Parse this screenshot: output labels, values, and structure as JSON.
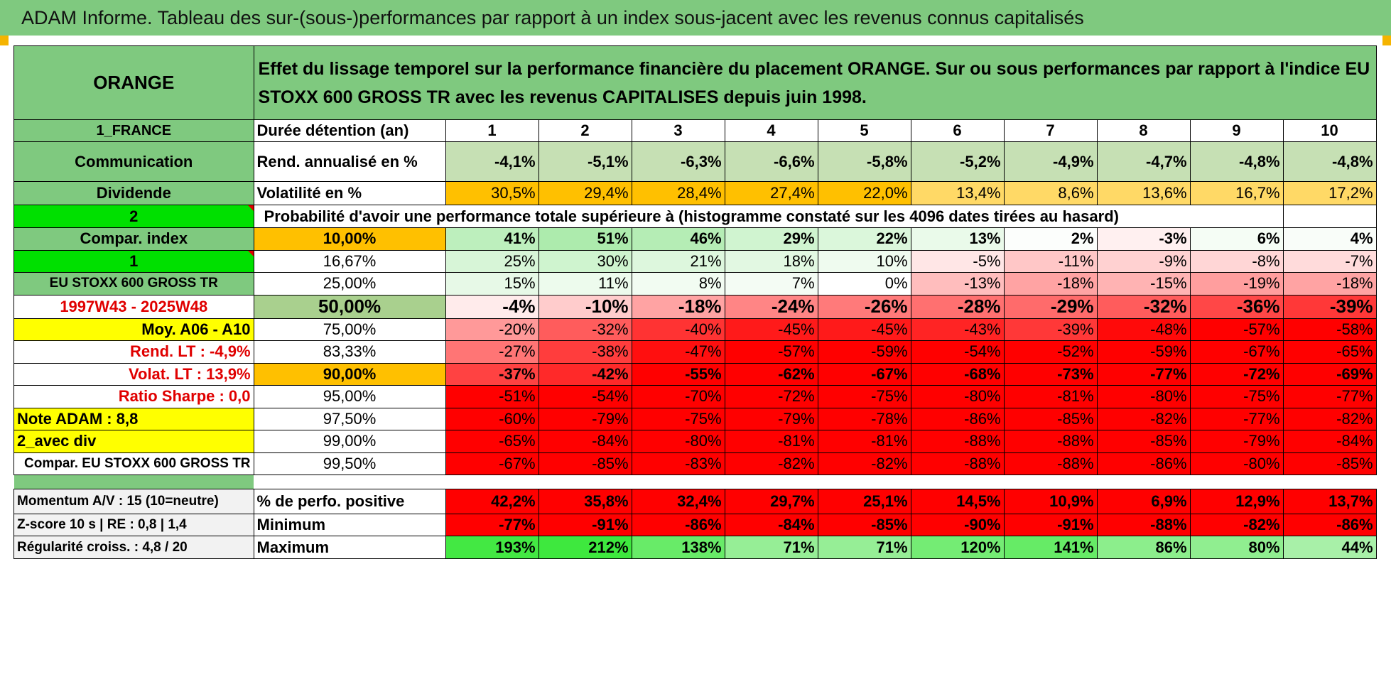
{
  "title": "ADAM Informe. Tableau des sur-(sous-)performances par rapport à un index sous-jacent avec les revenus connus capitalisés",
  "header": {
    "stock": "ORANGE",
    "description": "Effet du lissage temporel sur la performance financière du placement ORANGE. Sur ou sous performances par rapport à l'indice EU STOXX 600 GROSS TR avec les revenus CAPITALISES depuis juin 1998."
  },
  "side": {
    "country": "1_FRANCE",
    "sector": "Communication",
    "type": "Dividende",
    "prob_id": "2",
    "compar_label": "Compar. index",
    "index_id": "1",
    "index_name": "EU STOXX 600 GROSS TR",
    "period": "1997W43 - 2025W48",
    "moy": "Moy. A06 - A10",
    "rend_lt": "Rend. LT :    -4,9%",
    "volat_lt": "Volat. LT :    13,9%",
    "sharpe": "Ratio Sharpe :     0,0",
    "note": "Note ADAM : 8,8",
    "div": "2_avec div",
    "compar_full": "Compar. EU STOXX 600 GROSS TR"
  },
  "row_labels": {
    "duration": "Durée détention (an)",
    "rend": "Rend. annualisé en %",
    "vol": "Volatilité en %",
    "prob_title": "Probabilité d'avoir une performance totale supérieure à (histogramme constaté sur les 4096 dates tirées au hasard)"
  },
  "years": [
    "1",
    "2",
    "3",
    "4",
    "5",
    "6",
    "7",
    "8",
    "9",
    "10"
  ],
  "rend": [
    "-4,1%",
    "-5,1%",
    "-6,3%",
    "-6,6%",
    "-5,8%",
    "-5,2%",
    "-4,9%",
    "-4,7%",
    "-4,8%",
    "-4,8%"
  ],
  "vol": [
    "30,5%",
    "29,4%",
    "28,4%",
    "27,4%",
    "22,0%",
    "13,4%",
    "8,6%",
    "13,6%",
    "16,7%",
    "17,2%"
  ],
  "quantiles": [
    {
      "q": "10,00%",
      "values": [
        "41%",
        "51%",
        "46%",
        "29%",
        "22%",
        "13%",
        "2%",
        "-3%",
        "6%",
        "4%"
      ]
    },
    {
      "q": "16,67%",
      "values": [
        "25%",
        "30%",
        "21%",
        "18%",
        "10%",
        "-5%",
        "-11%",
        "-9%",
        "-8%",
        "-7%"
      ]
    },
    {
      "q": "25,00%",
      "values": [
        "15%",
        "11%",
        "8%",
        "7%",
        "0%",
        "-13%",
        "-18%",
        "-15%",
        "-19%",
        "-18%"
      ]
    },
    {
      "q": "50,00%",
      "values": [
        "-4%",
        "-10%",
        "-18%",
        "-24%",
        "-26%",
        "-28%",
        "-29%",
        "-32%",
        "-36%",
        "-39%"
      ]
    },
    {
      "q": "75,00%",
      "values": [
        "-20%",
        "-32%",
        "-40%",
        "-45%",
        "-45%",
        "-43%",
        "-39%",
        "-48%",
        "-57%",
        "-58%"
      ]
    },
    {
      "q": "83,33%",
      "values": [
        "-27%",
        "-38%",
        "-47%",
        "-57%",
        "-59%",
        "-54%",
        "-52%",
        "-59%",
        "-67%",
        "-65%"
      ]
    },
    {
      "q": "90,00%",
      "values": [
        "-37%",
        "-42%",
        "-55%",
        "-62%",
        "-67%",
        "-68%",
        "-73%",
        "-77%",
        "-72%",
        "-69%"
      ]
    },
    {
      "q": "95,00%",
      "values": [
        "-51%",
        "-54%",
        "-70%",
        "-72%",
        "-75%",
        "-80%",
        "-81%",
        "-80%",
        "-75%",
        "-77%"
      ]
    },
    {
      "q": "97,50%",
      "values": [
        "-60%",
        "-79%",
        "-75%",
        "-79%",
        "-78%",
        "-86%",
        "-85%",
        "-82%",
        "-77%",
        "-82%"
      ]
    },
    {
      "q": "99,00%",
      "values": [
        "-65%",
        "-84%",
        "-80%",
        "-81%",
        "-81%",
        "-88%",
        "-88%",
        "-85%",
        "-79%",
        "-84%"
      ]
    },
    {
      "q": "99,50%",
      "values": [
        "-67%",
        "-85%",
        "-83%",
        "-82%",
        "-82%",
        "-88%",
        "-88%",
        "-86%",
        "-80%",
        "-85%"
      ]
    }
  ],
  "bottom": {
    "momentum": "Momentum A/V : 15 (10=neutre)",
    "zscore": "Z-score 10 s | RE : 0,8 | 1,4",
    "regularite": "Régularité croiss. : 4,8 / 20",
    "pos_label": "% de perfo. positive",
    "min_label": "Minimum",
    "max_label": "Maximum",
    "pos": [
      "42,2%",
      "35,8%",
      "32,4%",
      "29,7%",
      "25,1%",
      "14,5%",
      "10,9%",
      "6,9%",
      "12,9%",
      "13,7%"
    ],
    "min": [
      "-77%",
      "-91%",
      "-86%",
      "-84%",
      "-85%",
      "-90%",
      "-91%",
      "-88%",
      "-82%",
      "-86%"
    ],
    "max": [
      "193%",
      "212%",
      "138%",
      "71%",
      "71%",
      "120%",
      "141%",
      "86%",
      "80%",
      "44%"
    ]
  },
  "colors": {
    "header_green": "#7fc97f",
    "bright_green": "#00e000",
    "highlight_yellow": "#ffff00",
    "highlight_orange": "#ffc000",
    "loss_red": "#ff0000"
  }
}
